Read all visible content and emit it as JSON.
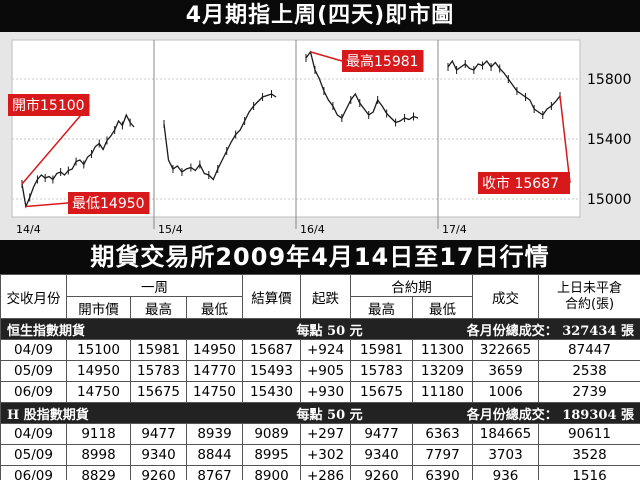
{
  "header": {
    "title": "4月期指上周(四天)即市圖"
  },
  "chart_data": {
    "type": "line",
    "title": "4月期指上周(四天)即市圖",
    "days": [
      "14/4",
      "15/4",
      "16/4",
      "17/4"
    ],
    "y_ticks": [
      15000,
      15400,
      15800
    ],
    "ylim": [
      14880,
      16060
    ],
    "series": [
      {
        "day": "14/4",
        "values": [
          15100,
          14950,
          15010,
          15080,
          15130,
          15160,
          15140,
          15150,
          15130,
          15170,
          15180,
          15160,
          15190,
          15200,
          15250,
          15260,
          15230,
          15280,
          15300,
          15350,
          15370,
          15330,
          15390,
          15420,
          15460,
          15520,
          15490,
          15560,
          15510,
          15480
        ]
      },
      {
        "day": "15/4",
        "values": [
          15500,
          15260,
          15200,
          15220,
          15180,
          15200,
          15210,
          15190,
          15230,
          15170,
          15160,
          15130,
          15200,
          15260,
          15320,
          15380,
          15430,
          15460,
          15520,
          15580,
          15620,
          15650,
          15680,
          15690,
          15700,
          15680
        ]
      },
      {
        "day": "16/4",
        "values": [
          15940,
          15981,
          15860,
          15800,
          15720,
          15660,
          15620,
          15560,
          15540,
          15600,
          15660,
          15700,
          15640,
          15600,
          15560,
          15580,
          15660,
          15620,
          15570,
          15540,
          15510,
          15520,
          15540,
          15530,
          15550,
          15540
        ]
      },
      {
        "day": "17/4",
        "values": [
          15880,
          15920,
          15860,
          15880,
          15900,
          15870,
          15860,
          15900,
          15890,
          15920,
          15880,
          15910,
          15870,
          15840,
          15800,
          15760,
          15720,
          15700,
          15680,
          15660,
          15600,
          15580,
          15560,
          15600,
          15620,
          15650,
          15687
        ]
      }
    ],
    "annotations": [
      {
        "text": "開市15100",
        "value": 15100,
        "day": "14/4"
      },
      {
        "text": "最低14950",
        "value": 14950,
        "day": "14/4"
      },
      {
        "text": "最高15981",
        "value": 15981,
        "day": "16/4"
      },
      {
        "text": "收市 15687",
        "value": 15687,
        "day": "17/4"
      }
    ]
  },
  "table": {
    "title": "期貨交易所2009年4月14日至17日行情",
    "headers": {
      "month": "交收月份",
      "week": "一周",
      "open": "開市價",
      "high": "最高",
      "low": "最低",
      "settle": "結算價",
      "change": "起跌",
      "contract": "合約期",
      "c_high": "最高",
      "c_low": "最低",
      "volume": "成交",
      "oi_line1": "上日未平倉",
      "oi_line2": "合約(張)"
    },
    "sections": [
      {
        "name": "恒生指數期貨",
        "point": "每點 50 元",
        "total_label": "各月份總成交：",
        "total_value": "327434 張",
        "rows": [
          [
            "04/09",
            "15100",
            "15981",
            "14950",
            "15687",
            "+924",
            "15981",
            "11300",
            "322665",
            "87447"
          ],
          [
            "05/09",
            "14950",
            "15783",
            "14770",
            "15493",
            "+905",
            "15783",
            "13209",
            "3659",
            "2538"
          ],
          [
            "06/09",
            "14750",
            "15675",
            "14750",
            "15430",
            "+930",
            "15675",
            "11180",
            "1006",
            "2739"
          ]
        ]
      },
      {
        "name": "H 股指數期貨",
        "point": "每點 50 元",
        "total_label": "各月份總成交：",
        "total_value": "189304 張",
        "rows": [
          [
            "04/09",
            "9118",
            "9477",
            "8939",
            "9089",
            "+297",
            "9477",
            "6363",
            "184665",
            "90611"
          ],
          [
            "05/09",
            "8998",
            "9340",
            "8844",
            "8995",
            "+302",
            "9340",
            "7797",
            "3703",
            "3528"
          ],
          [
            "06/09",
            "8829",
            "9260",
            "8767",
            "8900",
            "+286",
            "9260",
            "6390",
            "936",
            "1516"
          ]
        ]
      }
    ]
  }
}
